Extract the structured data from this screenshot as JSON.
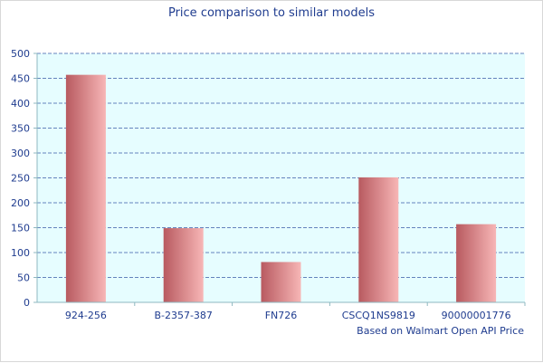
{
  "chart_data": {
    "type": "bar",
    "title": "Price comparison to similar models",
    "footnote": "Based on Walmart Open API Price",
    "xlabel": "",
    "ylabel": "",
    "categories": [
      "924-256",
      "B-2357-387",
      "FN726",
      "CSCQ1NS9819",
      "90000001776"
    ],
    "values": [
      457,
      149,
      81,
      251,
      157
    ],
    "ylim": [
      0,
      500
    ],
    "yticks": [
      0,
      50,
      100,
      150,
      200,
      250,
      300,
      350,
      400,
      450,
      500
    ],
    "grid": true,
    "legend": "none"
  },
  "colors": {
    "title": "#1f3c8f",
    "label": "#1f3c8f",
    "plot_bg": "#e6fdff",
    "grid": "#3a5ba8",
    "axis": "#8fb8c0",
    "bar_dark": "#b85a60",
    "bar_light": "#f7b6b6"
  }
}
